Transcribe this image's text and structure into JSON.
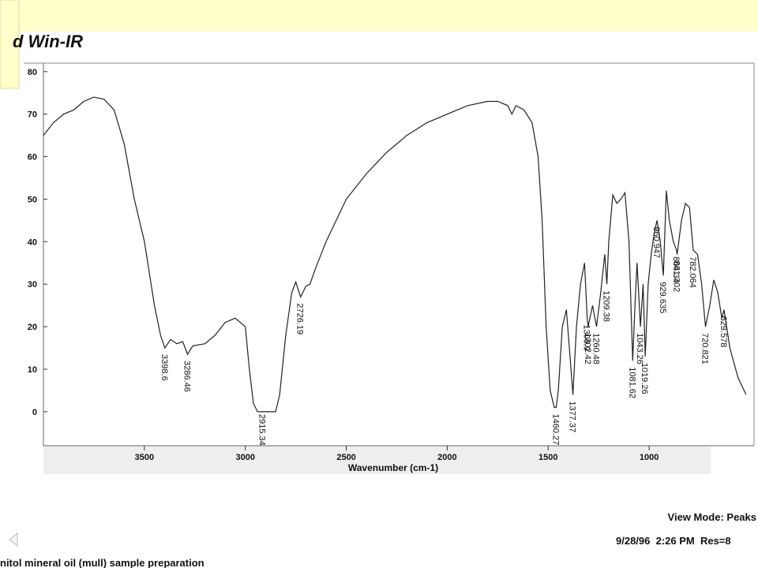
{
  "header": {
    "title": "d Win-IR"
  },
  "footer": {
    "view_mode": "View Mode: Peaks",
    "timestamp": "9/28/96  2:26 PM  Res=8",
    "sample": "nitol mineral oil (mull) sample preparation"
  },
  "chart_data": {
    "type": "line",
    "x_label": "Wavenumber (cm-1)",
    "color": "#222222",
    "xlim": [
      4000,
      500
    ],
    "ylim": [
      -8,
      82
    ],
    "xticks": [
      3500,
      3000,
      2500,
      2000,
      1500,
      1000
    ],
    "yticks": [
      0,
      10,
      20,
      30,
      40,
      50,
      60,
      70,
      80
    ],
    "x": [
      4000,
      3950,
      3900,
      3850,
      3800,
      3750,
      3700,
      3650,
      3600,
      3550,
      3500,
      3450,
      3420,
      3398.6,
      3370,
      3340,
      3310,
      3286.46,
      3260,
      3200,
      3150,
      3100,
      3050,
      3000,
      2980,
      2960,
      2940,
      2915.34,
      2880,
      2850,
      2830,
      2800,
      2770,
      2750,
      2726.19,
      2700,
      2680,
      2650,
      2600,
      2550,
      2500,
      2400,
      2300,
      2200,
      2100,
      2000,
      1900,
      1800,
      1750,
      1700,
      1680,
      1660,
      1620,
      1580,
      1550,
      1530,
      1510,
      1490,
      1470,
      1460.27,
      1450,
      1430,
      1410,
      1395,
      1377.37,
      1360,
      1340,
      1320,
      1306.9,
      1302.42,
      1280,
      1260.48,
      1240,
      1220,
      1209.38,
      1200,
      1180,
      1160,
      1140,
      1120,
      1100,
      1081.62,
      1070,
      1060,
      1043.26,
      1030,
      1019.26,
      1005,
      990,
      975,
      960.947,
      945,
      929.635,
      915,
      900,
      880,
      864.34,
      861.302,
      840,
      820,
      800,
      782.064,
      760,
      740,
      720.821,
      700,
      680,
      660,
      640,
      629.578,
      600,
      560,
      520
    ],
    "values": [
      65,
      68,
      70,
      71,
      73,
      74,
      73.5,
      71,
      63,
      50,
      40,
      25,
      18,
      15,
      17,
      16,
      16.5,
      13.5,
      15.5,
      16,
      18,
      21,
      22,
      20,
      10,
      2,
      0,
      0,
      0,
      0,
      4,
      18,
      28,
      30.5,
      27,
      29.5,
      30,
      34,
      40,
      45,
      50,
      56,
      61,
      65,
      68,
      70,
      72,
      73,
      73,
      72,
      70,
      72,
      71,
      68,
      60,
      45,
      20,
      5,
      1,
      1,
      5,
      20,
      24,
      15,
      4,
      20,
      30,
      35,
      22,
      20,
      25,
      20,
      28,
      37,
      30,
      40,
      51,
      49,
      50,
      51.5,
      40,
      12,
      25,
      35,
      20,
      30,
      13,
      30,
      37,
      42,
      45,
      40,
      32,
      52,
      45,
      40,
      38,
      37,
      45,
      49,
      48,
      38,
      37,
      30,
      20,
      25,
      31,
      28,
      22,
      24,
      15,
      8,
      4
    ],
    "peaks": [
      3398.6,
      3286.46,
      2915.34,
      2726.19,
      1460.27,
      1377.37,
      1306.9,
      1302.42,
      1260.48,
      1209.38,
      1081.62,
      1043.26,
      1019.26,
      960.947,
      929.635,
      864.34,
      861.302,
      782.064,
      720.821,
      629.578
    ]
  }
}
